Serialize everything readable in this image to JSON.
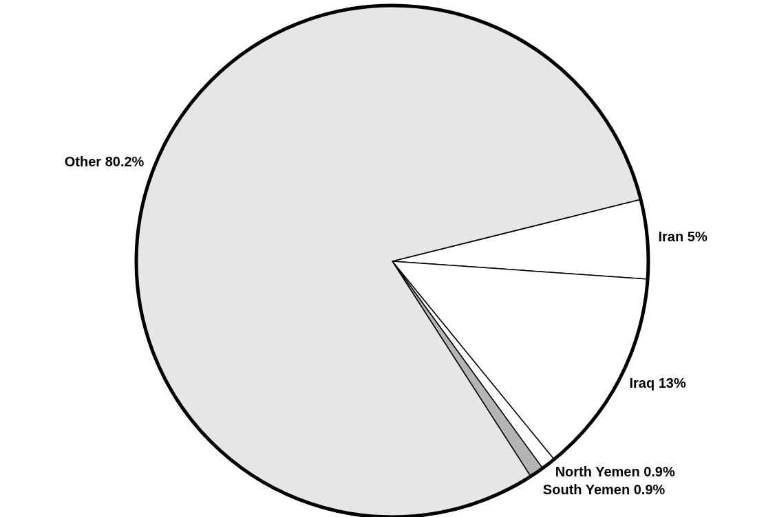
{
  "chart_data": {
    "type": "pie",
    "categories": [
      "Iran",
      "Iraq",
      "North Yemen",
      "South Yemen",
      "Other"
    ],
    "values": [
      5,
      13,
      0.9,
      0.9,
      80.2
    ],
    "value_labels": [
      "5%",
      "13%",
      "0.9%",
      "0.9%",
      "80.2%"
    ],
    "colors": [
      "#ffffff",
      "#ffffff",
      "#ffffff",
      "#b4b4b4",
      "#e6e6e6"
    ]
  }
}
